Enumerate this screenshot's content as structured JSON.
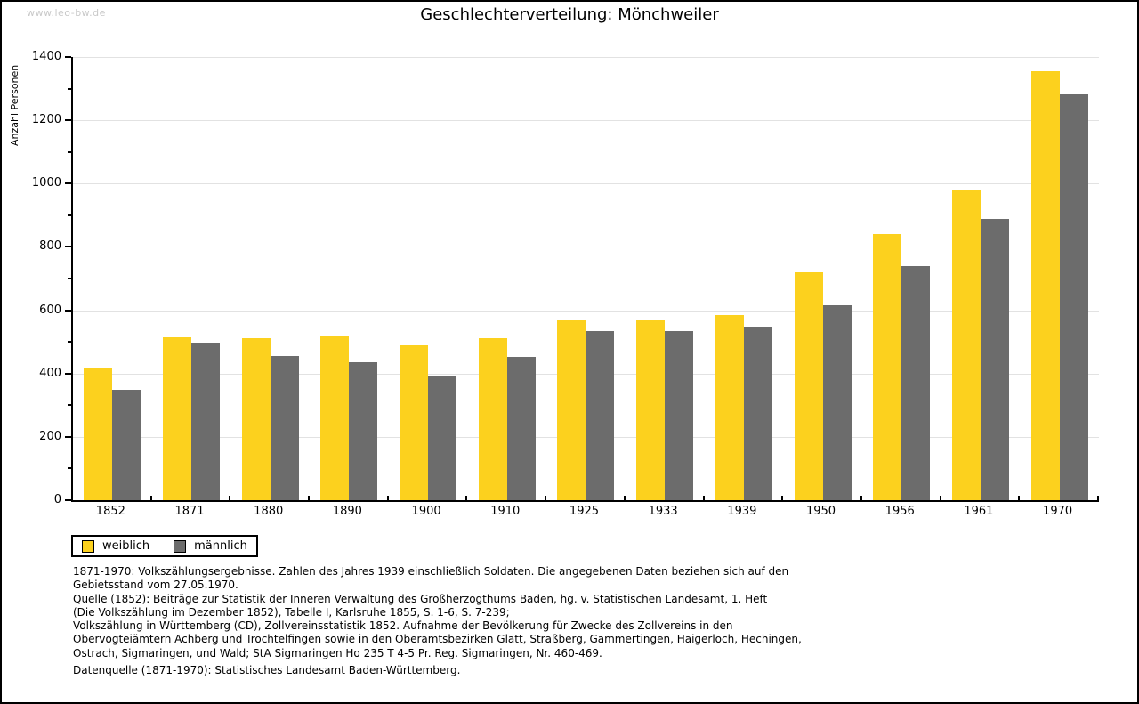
{
  "page": {
    "watermark": "www.leo-bw.de"
  },
  "colors": {
    "gridline": "#e2e2e2",
    "watermark_text": "#c9c9c9",
    "axis": "#000000",
    "background": "#ffffff"
  },
  "chart_data": {
    "type": "bar",
    "title": "Geschlechterverteilung: Mönchweiler",
    "xlabel": "",
    "ylabel": "Anzahl Personen",
    "ylim": [
      0,
      1400
    ],
    "ytick_step": 200,
    "ytick_minor_step": 100,
    "grid": true,
    "legend_position": "bottom-left",
    "categories": [
      "1852",
      "1871",
      "1880",
      "1890",
      "1900",
      "1910",
      "1925",
      "1933",
      "1939",
      "1950",
      "1956",
      "1961",
      "1970"
    ],
    "series": [
      {
        "name": "weiblich",
        "color": "#fcd11e",
        "values": [
          420,
          515,
          511,
          520,
          489,
          511,
          569,
          570,
          586,
          721,
          840,
          977,
          1356
        ]
      },
      {
        "name": "männlich",
        "color": "#6c6c6c",
        "values": [
          350,
          497,
          455,
          437,
          395,
          454,
          534,
          533,
          548,
          617,
          738,
          889,
          1282
        ]
      }
    ]
  },
  "footnotes": {
    "lines": [
      "1871-1970: Volkszählungsergebnisse. Zahlen des Jahres 1939 einschließlich Soldaten. Die angegebenen Daten beziehen sich auf den",
      "Gebietsstand vom 27.05.1970.",
      "Quelle (1852): Beiträge zur Statistik der Inneren Verwaltung des Großherzogthums Baden, hg. v. Statistischen Landesamt, 1. Heft",
      "(Die Volkszählung im Dezember 1852), Tabelle I, Karlsruhe 1855, S. 1-6, S. 7-239;",
      "Volkszählung in Württemberg (CD), Zollvereinsstatistik 1852. Aufnahme der Bevölkerung für Zwecke des Zollvereins in den",
      "Obervogteiämtern Achberg und Trochtelfingen sowie in den Oberamtsbezirken Glatt, Straßberg, Gammertingen, Haigerloch, Hechingen,",
      "Ostrach, Sigmaringen, und Wald; StA Sigmaringen Ho 235 T 4-5 Pr. Reg. Sigmaringen, Nr. 460-469."
    ],
    "datasource": "Datenquelle (1871-1970): Statistisches Landesamt Baden-Württemberg."
  }
}
